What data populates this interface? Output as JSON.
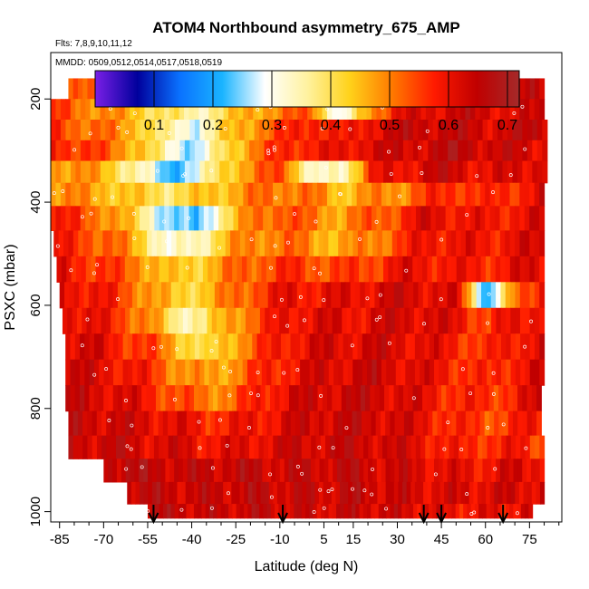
{
  "chart_data": {
    "type": "heatmap",
    "title": "ATOM4 Northbound asymmetry_675_AMP",
    "subtitle_flights": "Flts: 7,8,9,10,11,12",
    "subtitle_dates": "MMDD: 0509,0512,0514,0517,0518,0519",
    "xlabel": "Latitude (deg N)",
    "ylabel": "PSXC (mbar)",
    "xlim": [
      -88,
      86
    ],
    "ylim": [
      1020,
      110
    ],
    "x_ticks": [
      -85,
      -70,
      -55,
      -40,
      -25,
      -10,
      5,
      15,
      30,
      45,
      60,
      75
    ],
    "x_minor_step": 5,
    "y_ticks": [
      200,
      400,
      600,
      800,
      1000
    ],
    "colorbar": {
      "range": [
        0.0,
        0.72
      ],
      "ticks": [
        0.1,
        0.2,
        0.3,
        0.4,
        0.5,
        0.6,
        0.7
      ],
      "stops": [
        "#7a1fe6",
        "#00009c",
        "#0a72ff",
        "#1ab4ff",
        "#ffffff",
        "#fff2a0",
        "#ffd21a",
        "#ff7a00",
        "#ff1a00",
        "#c00000",
        "#a52a2a"
      ]
    },
    "markers_lat": [
      -53,
      -9,
      39,
      45,
      66
    ],
    "layers": [
      {
        "p": 180,
        "x": [
          -82,
          80
        ],
        "v": [
          0.52,
          0.5,
          0.47,
          0.45,
          0.41,
          0.36,
          0.38,
          0.44,
          0.48,
          0.5,
          0.52,
          0.56,
          0.6,
          0.62,
          0.64,
          0.65,
          0.66,
          0.62
        ]
      },
      {
        "p": 220,
        "x": [
          -88,
          80
        ],
        "v": [
          0.55,
          0.52,
          0.48,
          0.45,
          0.38,
          0.35,
          0.4,
          0.48,
          0.5,
          0.54,
          0.25,
          0.5,
          0.6,
          0.62,
          0.64,
          0.63,
          0.61,
          0.63
        ]
      },
      {
        "p": 260,
        "x": [
          -88,
          81
        ],
        "v": [
          0.56,
          0.53,
          0.5,
          0.46,
          0.34,
          0.3,
          0.42,
          0.5,
          0.55,
          0.6,
          0.56,
          0.62,
          0.64,
          0.65,
          0.64,
          0.63,
          0.64,
          0.66
        ]
      },
      {
        "p": 300,
        "x": [
          -88,
          81
        ],
        "v": [
          0.6,
          0.56,
          0.52,
          0.46,
          0.32,
          0.26,
          0.4,
          0.52,
          0.56,
          0.6,
          0.58,
          0.64,
          0.62,
          0.65,
          0.66,
          0.64,
          0.63,
          0.62
        ]
      },
      {
        "p": 340,
        "x": [
          -88,
          81
        ],
        "v": [
          0.5,
          0.48,
          0.45,
          0.34,
          0.22,
          0.28,
          0.44,
          0.5,
          0.55,
          0.3,
          0.34,
          0.58,
          0.6,
          0.64,
          0.63,
          0.6,
          0.62,
          0.64
        ]
      },
      {
        "p": 385,
        "x": [
          -88,
          80
        ],
        "v": [
          0.5,
          0.48,
          0.46,
          0.42,
          0.4,
          0.42,
          0.46,
          0.5,
          0.52,
          0.5,
          0.45,
          0.48,
          0.5,
          0.55,
          0.58,
          0.55,
          0.58,
          0.62
        ]
      },
      {
        "p": 430,
        "x": [
          -88,
          80
        ],
        "v": [
          0.58,
          0.55,
          0.5,
          0.4,
          0.26,
          0.2,
          0.4,
          0.5,
          0.55,
          0.5,
          0.48,
          0.52,
          0.56,
          0.62,
          0.6,
          0.58,
          0.6,
          0.62
        ]
      },
      {
        "p": 480,
        "x": [
          -87,
          80
        ],
        "v": [
          0.58,
          0.56,
          0.52,
          0.44,
          0.3,
          0.34,
          0.46,
          0.5,
          0.52,
          0.48,
          0.46,
          0.5,
          0.55,
          0.6,
          0.6,
          0.58,
          0.62,
          0.6
        ]
      },
      {
        "p": 530,
        "x": [
          -86,
          80
        ],
        "v": [
          0.6,
          0.58,
          0.54,
          0.5,
          0.42,
          0.44,
          0.5,
          0.54,
          0.56,
          0.55,
          0.54,
          0.56,
          0.6,
          0.6,
          0.58,
          0.58,
          0.6,
          0.62
        ]
      },
      {
        "p": 580,
        "x": [
          -85,
          80
        ],
        "v": [
          0.62,
          0.6,
          0.56,
          0.5,
          0.42,
          0.44,
          0.5,
          0.56,
          0.6,
          0.6,
          0.6,
          0.62,
          0.63,
          0.62,
          0.6,
          0.2,
          0.5,
          0.62
        ]
      },
      {
        "p": 630,
        "x": [
          -84,
          80
        ],
        "v": [
          0.63,
          0.6,
          0.56,
          0.5,
          0.36,
          0.38,
          0.48,
          0.55,
          0.6,
          0.62,
          0.6,
          0.62,
          0.63,
          0.62,
          0.6,
          0.55,
          0.6,
          0.62
        ]
      },
      {
        "p": 680,
        "x": [
          -83,
          80
        ],
        "v": [
          0.63,
          0.62,
          0.58,
          0.54,
          0.46,
          0.38,
          0.48,
          0.55,
          0.6,
          0.62,
          0.62,
          0.63,
          0.62,
          0.6,
          0.58,
          0.55,
          0.6,
          0.62
        ]
      },
      {
        "p": 730,
        "x": [
          -83,
          80
        ],
        "v": [
          0.64,
          0.62,
          0.6,
          0.56,
          0.5,
          0.46,
          0.5,
          0.56,
          0.6,
          0.62,
          0.63,
          0.64,
          0.62,
          0.6,
          0.58,
          0.55,
          0.6,
          0.62
        ]
      },
      {
        "p": 780,
        "x": [
          -83,
          79
        ],
        "v": [
          0.64,
          0.63,
          0.62,
          0.58,
          0.54,
          0.5,
          0.52,
          0.58,
          0.62,
          0.63,
          0.64,
          0.64,
          0.62,
          0.6,
          0.57,
          0.56,
          0.58,
          0.62
        ]
      },
      {
        "p": 830,
        "x": [
          -82,
          79
        ],
        "v": [
          0.65,
          0.64,
          0.63,
          0.62,
          0.6,
          0.58,
          0.58,
          0.6,
          0.62,
          0.64,
          0.64,
          0.64,
          0.62,
          0.6,
          0.56,
          0.55,
          0.56,
          0.6
        ]
      },
      {
        "p": 875,
        "x": [
          -82,
          80
        ],
        "v": [
          0.65,
          0.64,
          0.64,
          0.62,
          0.62,
          0.6,
          0.6,
          0.62,
          0.63,
          0.64,
          0.64,
          0.64,
          0.62,
          0.6,
          0.56,
          0.58,
          0.58,
          0.55
        ]
      },
      {
        "p": 920,
        "x": [
          -70,
          80
        ],
        "v": [
          0.66,
          0.66,
          0.65,
          0.64,
          0.65,
          0.65,
          0.64,
          0.64,
          0.65,
          0.64,
          0.63,
          0.62,
          0.6,
          0.6,
          0.62,
          0.62
        ]
      },
      {
        "p": 965,
        "x": [
          -62,
          80
        ],
        "v": [
          0.66,
          0.65,
          0.64,
          0.64,
          0.65,
          0.65,
          0.64,
          0.64,
          0.65,
          0.64,
          0.63,
          0.62,
          0.62,
          0.62,
          0.63,
          0.62
        ]
      },
      {
        "p": 1005,
        "x": [
          -55,
          76
        ],
        "v": [
          0.66,
          0.65,
          0.64,
          0.64,
          0.65,
          0.64,
          0.63,
          0.64,
          0.64,
          0.63,
          0.62,
          0.6,
          0.6,
          0.6,
          0.62
        ]
      }
    ]
  }
}
